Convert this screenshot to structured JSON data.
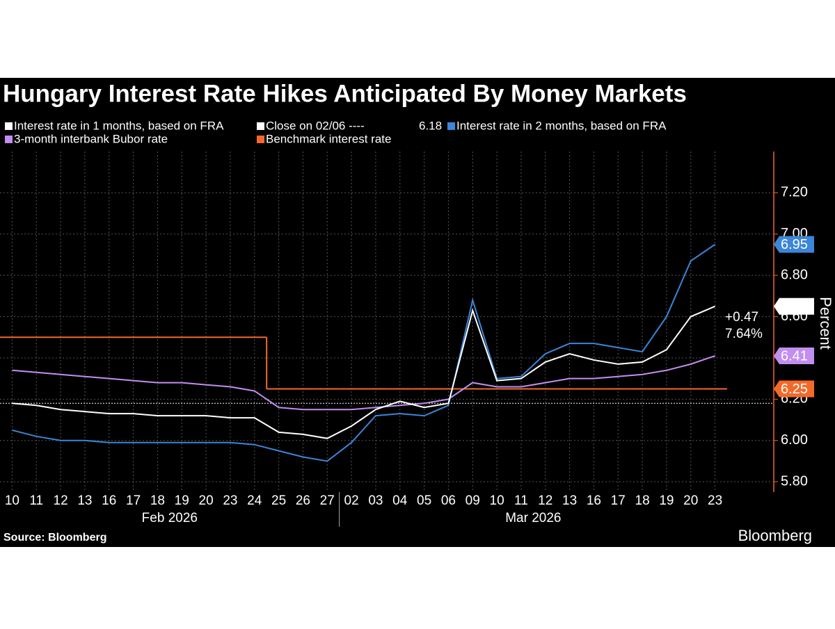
{
  "chart_data": {
    "type": "line",
    "title": "Hungary Interest Rate Hikes Anticipated By Money Markets",
    "source": "Source: Bloomberg",
    "brand": "Bloomberg",
    "y_label": "Percent",
    "months": [
      "Feb 2026",
      "Mar 2026"
    ],
    "categories": [
      "10",
      "11",
      "12",
      "13",
      "16",
      "17",
      "18",
      "19",
      "20",
      "23",
      "24",
      "25",
      "26",
      "27",
      "02",
      "03",
      "04",
      "05",
      "06",
      "09",
      "10",
      "11",
      "12",
      "13",
      "16",
      "17",
      "18",
      "19",
      "20",
      "23"
    ],
    "series": [
      {
        "name": "Interest rate in 1 months, based on FRA",
        "color": "#ffffff",
        "values": [
          6.18,
          6.17,
          6.15,
          6.14,
          6.13,
          6.13,
          6.12,
          6.12,
          6.12,
          6.11,
          6.11,
          6.04,
          6.03,
          6.01,
          6.07,
          6.15,
          6.19,
          6.16,
          6.18,
          6.63,
          6.29,
          6.3,
          6.38,
          6.42,
          6.39,
          6.37,
          6.38,
          6.44,
          6.6,
          6.65
        ]
      },
      {
        "name": "Interest rate in 2 months, based on FRA",
        "color": "#3b86d8",
        "values": [
          6.05,
          6.02,
          6.0,
          6.0,
          5.99,
          5.99,
          5.99,
          5.99,
          5.99,
          5.99,
          5.98,
          5.95,
          5.92,
          5.9,
          5.99,
          6.12,
          6.13,
          6.12,
          6.17,
          6.68,
          6.3,
          6.31,
          6.42,
          6.47,
          6.47,
          6.45,
          6.43,
          6.6,
          6.87,
          6.95
        ]
      },
      {
        "name": "3-month interbank Bubor rate",
        "color": "#c28ef0",
        "values": [
          6.34,
          6.33,
          6.32,
          6.31,
          6.3,
          6.29,
          6.28,
          6.28,
          6.27,
          6.26,
          6.24,
          6.16,
          6.15,
          6.15,
          6.15,
          6.16,
          6.17,
          6.18,
          6.2,
          6.28,
          6.26,
          6.26,
          6.28,
          6.3,
          6.3,
          6.31,
          6.32,
          6.34,
          6.37,
          6.41
        ]
      },
      {
        "name": "Benchmark interest rate",
        "color": "#f4692a",
        "step": true,
        "values": [
          6.5,
          6.5,
          6.5,
          6.5,
          6.5,
          6.5,
          6.5,
          6.5,
          6.5,
          6.5,
          6.5,
          6.25,
          6.25,
          6.25,
          6.25,
          6.25,
          6.25,
          6.25,
          6.25,
          6.25,
          6.25,
          6.25,
          6.25,
          6.25,
          6.25,
          6.25,
          6.25,
          6.25,
          6.25,
          6.25
        ]
      }
    ],
    "close": {
      "label": "Close on 02/06 ----",
      "value": 6.18,
      "color": "#ffffff"
    },
    "annotations": [
      "+0.47",
      "7.64%"
    ],
    "ylim": [
      5.75,
      7.4
    ],
    "yticks": [
      {
        "value": 5.8,
        "label": "5.80"
      },
      {
        "value": 6.0,
        "label": "6.00"
      },
      {
        "value": 6.2,
        "label": "6.20"
      },
      {
        "value": 6.4,
        "label": "6.40"
      },
      {
        "value": 6.6,
        "label": "6.60"
      },
      {
        "value": 6.8,
        "label": "6.80"
      },
      {
        "value": 7.0,
        "label": "7.00"
      },
      {
        "value": 7.2,
        "label": "7.20"
      }
    ],
    "grid": true
  }
}
